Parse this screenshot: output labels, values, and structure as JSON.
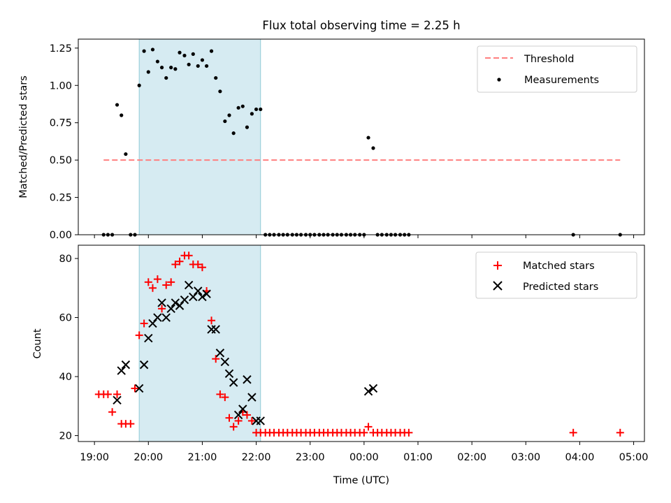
{
  "chart_data": [
    {
      "type": "scatter",
      "title": "Flux total observing time = 2.25 h",
      "xlabel": "",
      "ylabel": "Matched/Predicted stars",
      "xlim_hours": [
        18.7,
        29.2
      ],
      "ylim": [
        0,
        1.31
      ],
      "yticks": [
        "0.00",
        "0.25",
        "0.50",
        "0.75",
        "1.00",
        "1.25"
      ],
      "highlight_span_hours": [
        19.83,
        22.08
      ],
      "legend_placement": "top-right",
      "series": [
        {
          "name": "Threshold",
          "kind": "dashed-line",
          "color": "#ff7f7f",
          "x": [
            19.17,
            28.75
          ],
          "y": [
            0.5,
            0.5
          ]
        },
        {
          "name": "Measurements",
          "kind": "scatter-dot",
          "color": "#000000",
          "x": [
            19.17,
            19.25,
            19.33,
            19.42,
            19.5,
            19.58,
            19.67,
            19.75,
            19.83,
            19.92,
            20.0,
            20.08,
            20.17,
            20.25,
            20.33,
            20.42,
            20.5,
            20.58,
            20.67,
            20.75,
            20.83,
            20.92,
            21.0,
            21.08,
            21.17,
            21.25,
            21.33,
            21.42,
            21.5,
            21.58,
            21.67,
            21.75,
            21.83,
            21.92,
            22.0,
            22.08,
            22.17,
            22.25,
            22.33,
            22.42,
            22.5,
            22.58,
            22.67,
            22.75,
            22.83,
            22.92,
            23.0,
            23.08,
            23.17,
            23.25,
            23.33,
            23.42,
            23.5,
            23.58,
            23.67,
            23.75,
            23.83,
            23.92,
            24.0,
            24.08,
            24.17,
            24.25,
            24.33,
            24.42,
            24.5,
            24.58,
            24.67,
            24.75,
            24.83,
            27.88,
            28.75
          ],
          "y": [
            0,
            0,
            0,
            0.87,
            0.8,
            0.54,
            0,
            0,
            1.0,
            1.23,
            1.09,
            1.24,
            1.16,
            1.12,
            1.05,
            1.12,
            1.11,
            1.22,
            1.2,
            1.14,
            1.21,
            1.13,
            1.17,
            1.13,
            1.23,
            1.05,
            0.96,
            0.76,
            0.8,
            0.68,
            0.85,
            0.86,
            0.72,
            0.81,
            0.84,
            0.84,
            0,
            0,
            0,
            0,
            0,
            0,
            0,
            0,
            0,
            0,
            0,
            0,
            0,
            0,
            0,
            0,
            0,
            0,
            0,
            0,
            0,
            0,
            0,
            0.65,
            0.58,
            0,
            0,
            0,
            0,
            0,
            0,
            0,
            0,
            0,
            0
          ]
        }
      ]
    },
    {
      "type": "scatter",
      "title": "",
      "xlabel": "Time (UTC)",
      "ylabel": "Count",
      "xlim_hours": [
        18.7,
        29.2
      ],
      "ylim": [
        18,
        84.5
      ],
      "yticks": [
        "20",
        "40",
        "60",
        "80"
      ],
      "xticks": [
        {
          "hour": 19,
          "label": "19:00"
        },
        {
          "hour": 20,
          "label": "20:00"
        },
        {
          "hour": 21,
          "label": "21:00"
        },
        {
          "hour": 22,
          "label": "22:00"
        },
        {
          "hour": 23,
          "label": "23:00"
        },
        {
          "hour": 24,
          "label": "00:00"
        },
        {
          "hour": 25,
          "label": "01:00"
        },
        {
          "hour": 26,
          "label": "02:00"
        },
        {
          "hour": 27,
          "label": "03:00"
        },
        {
          "hour": 28,
          "label": "04:00"
        },
        {
          "hour": 29,
          "label": "05:00"
        }
      ],
      "highlight_span_hours": [
        19.83,
        22.08
      ],
      "legend_placement": "top-right",
      "series": [
        {
          "name": "Matched stars",
          "kind": "plus",
          "color": "#ff0000",
          "x": [
            19.08,
            19.17,
            19.25,
            19.33,
            19.42,
            19.5,
            19.58,
            19.67,
            19.75,
            19.83,
            19.92,
            20.0,
            20.08,
            20.17,
            20.25,
            20.33,
            20.42,
            20.5,
            20.58,
            20.67,
            20.75,
            20.83,
            20.92,
            21.0,
            21.08,
            21.17,
            21.25,
            21.33,
            21.42,
            21.5,
            21.58,
            21.67,
            21.75,
            21.83,
            21.92,
            22.0,
            22.08,
            22.17,
            22.25,
            22.33,
            22.42,
            22.5,
            22.58,
            22.67,
            22.75,
            22.83,
            22.92,
            23.0,
            23.08,
            23.17,
            23.25,
            23.33,
            23.42,
            23.5,
            23.58,
            23.67,
            23.75,
            23.83,
            23.92,
            24.0,
            24.08,
            24.17,
            24.25,
            24.33,
            24.42,
            24.5,
            24.58,
            24.67,
            24.75,
            24.83,
            27.88,
            28.75
          ],
          "y": [
            34,
            34,
            34,
            28,
            34,
            24,
            24,
            24,
            36,
            54,
            58,
            72,
            70,
            73,
            63,
            71,
            72,
            78,
            79,
            81,
            81,
            78,
            78,
            77,
            69,
            59,
            46,
            34,
            33,
            26,
            23,
            25,
            28,
            27,
            25,
            21,
            21,
            21,
            21,
            21,
            21,
            21,
            21,
            21,
            21,
            21,
            21,
            21,
            21,
            21,
            21,
            21,
            21,
            21,
            21,
            21,
            21,
            21,
            21,
            21,
            23,
            21,
            21,
            21,
            21,
            21,
            21,
            21,
            21,
            21,
            21,
            21
          ]
        },
        {
          "name": "Predicted stars",
          "kind": "x",
          "color": "#000000",
          "x": [
            19.42,
            19.5,
            19.58,
            19.83,
            19.92,
            20.0,
            20.08,
            20.17,
            20.25,
            20.33,
            20.42,
            20.5,
            20.58,
            20.67,
            20.75,
            20.83,
            20.92,
            21.0,
            21.08,
            21.17,
            21.25,
            21.33,
            21.42,
            21.5,
            21.58,
            21.67,
            21.75,
            21.83,
            21.92,
            22.0,
            22.08,
            24.08,
            24.17
          ],
          "y": [
            32,
            42,
            44,
            36,
            44,
            53,
            58,
            60,
            65,
            60,
            63,
            65,
            64,
            66,
            71,
            67,
            69,
            67,
            68,
            56,
            56,
            48,
            45,
            41,
            38,
            27,
            29,
            39,
            33,
            25,
            25,
            35,
            36
          ]
        }
      ]
    }
  ]
}
